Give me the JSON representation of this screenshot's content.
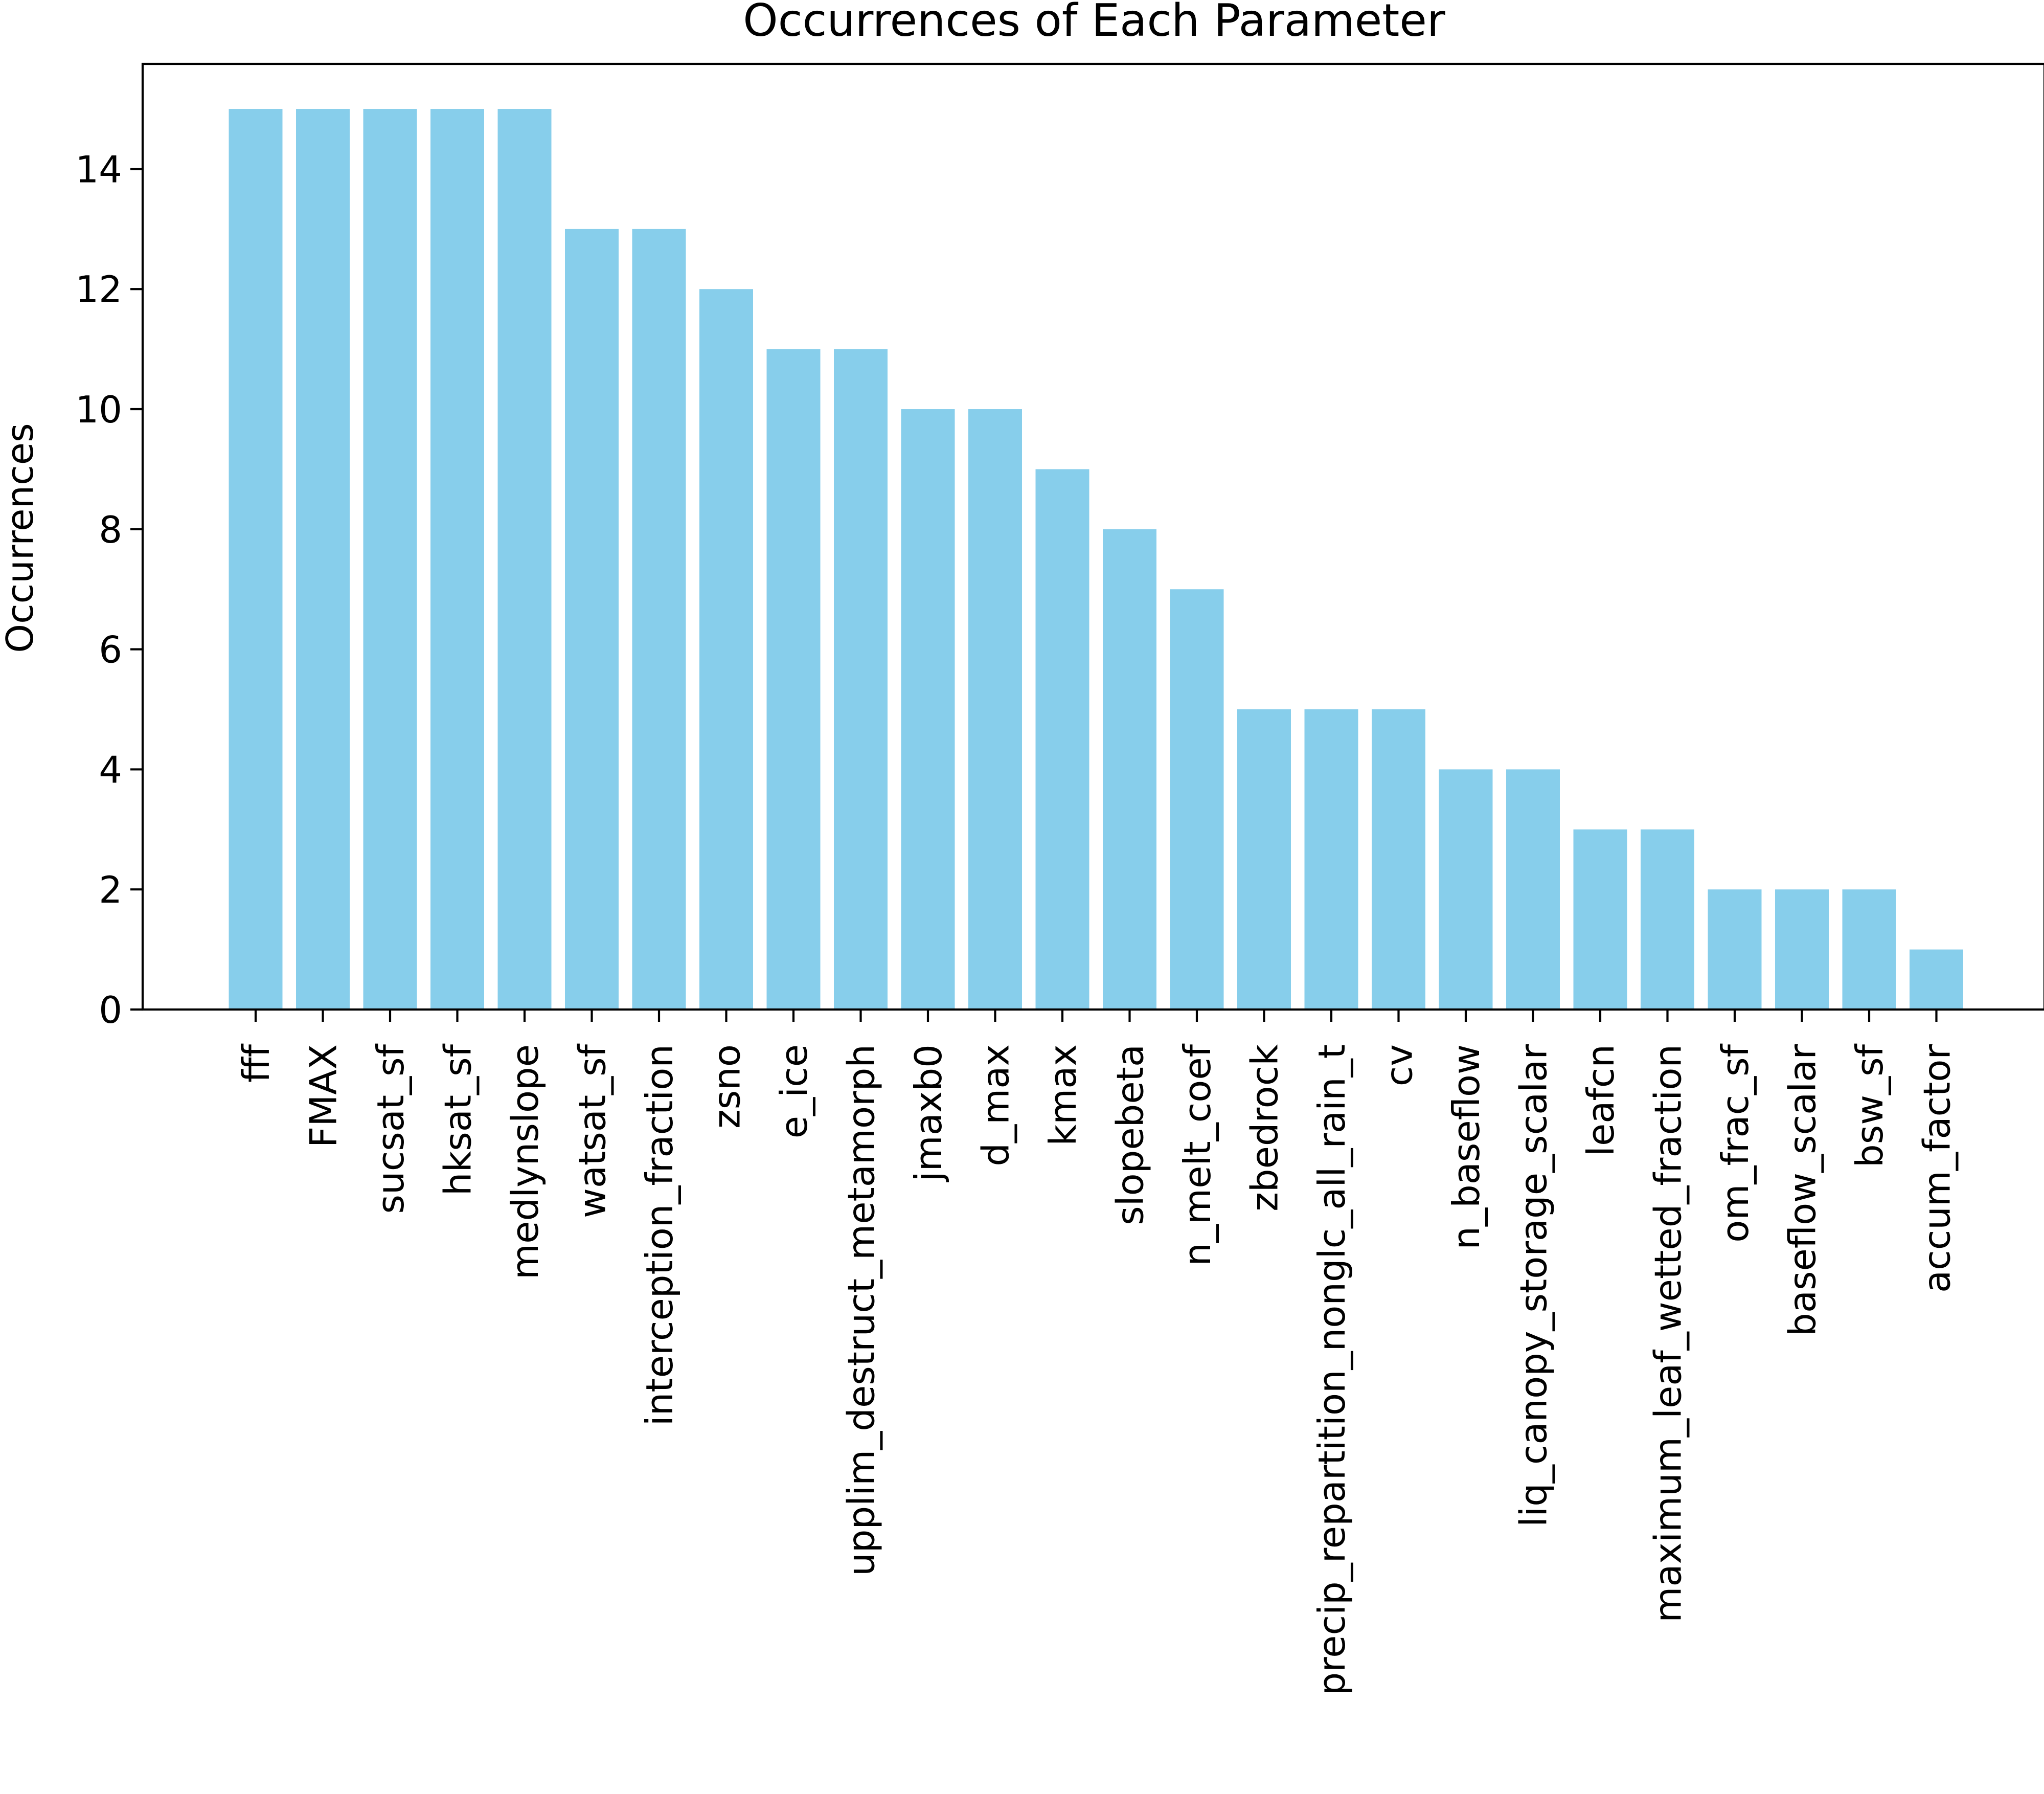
{
  "chart_data": {
    "type": "bar",
    "title": "Occurrences of Each Parameter",
    "xlabel": "",
    "ylabel": "Occurrences",
    "ylim": [
      0,
      15.75
    ],
    "yticks": [
      0,
      2,
      4,
      6,
      8,
      10,
      12,
      14
    ],
    "bar_color": "#87CEEB",
    "grid": false,
    "legend": "none",
    "categories": [
      "fff",
      "FMAX",
      "sucsat_sf",
      "hksat_sf",
      "medlynslope",
      "watsat_sf",
      "interception_fraction",
      "zsno",
      "e_ice",
      "upplim_destruct_metamorph",
      "jmaxb0",
      "d_max",
      "kmax",
      "slopebeta",
      "n_melt_coef",
      "zbedrock",
      "precip_repartition_nonglc_all_rain_t",
      "cv",
      "n_baseflow",
      "liq_canopy_storage_scalar",
      "leafcn",
      "maximum_leaf_wetted_fraction",
      "om_frac_sf",
      "baseflow_scalar",
      "bsw_sf",
      "accum_factor"
    ],
    "values": [
      15,
      15,
      15,
      15,
      15,
      13,
      13,
      12,
      11,
      11,
      10,
      10,
      9,
      8,
      7,
      5,
      5,
      5,
      4,
      4,
      3,
      3,
      2,
      2,
      2,
      1
    ]
  }
}
